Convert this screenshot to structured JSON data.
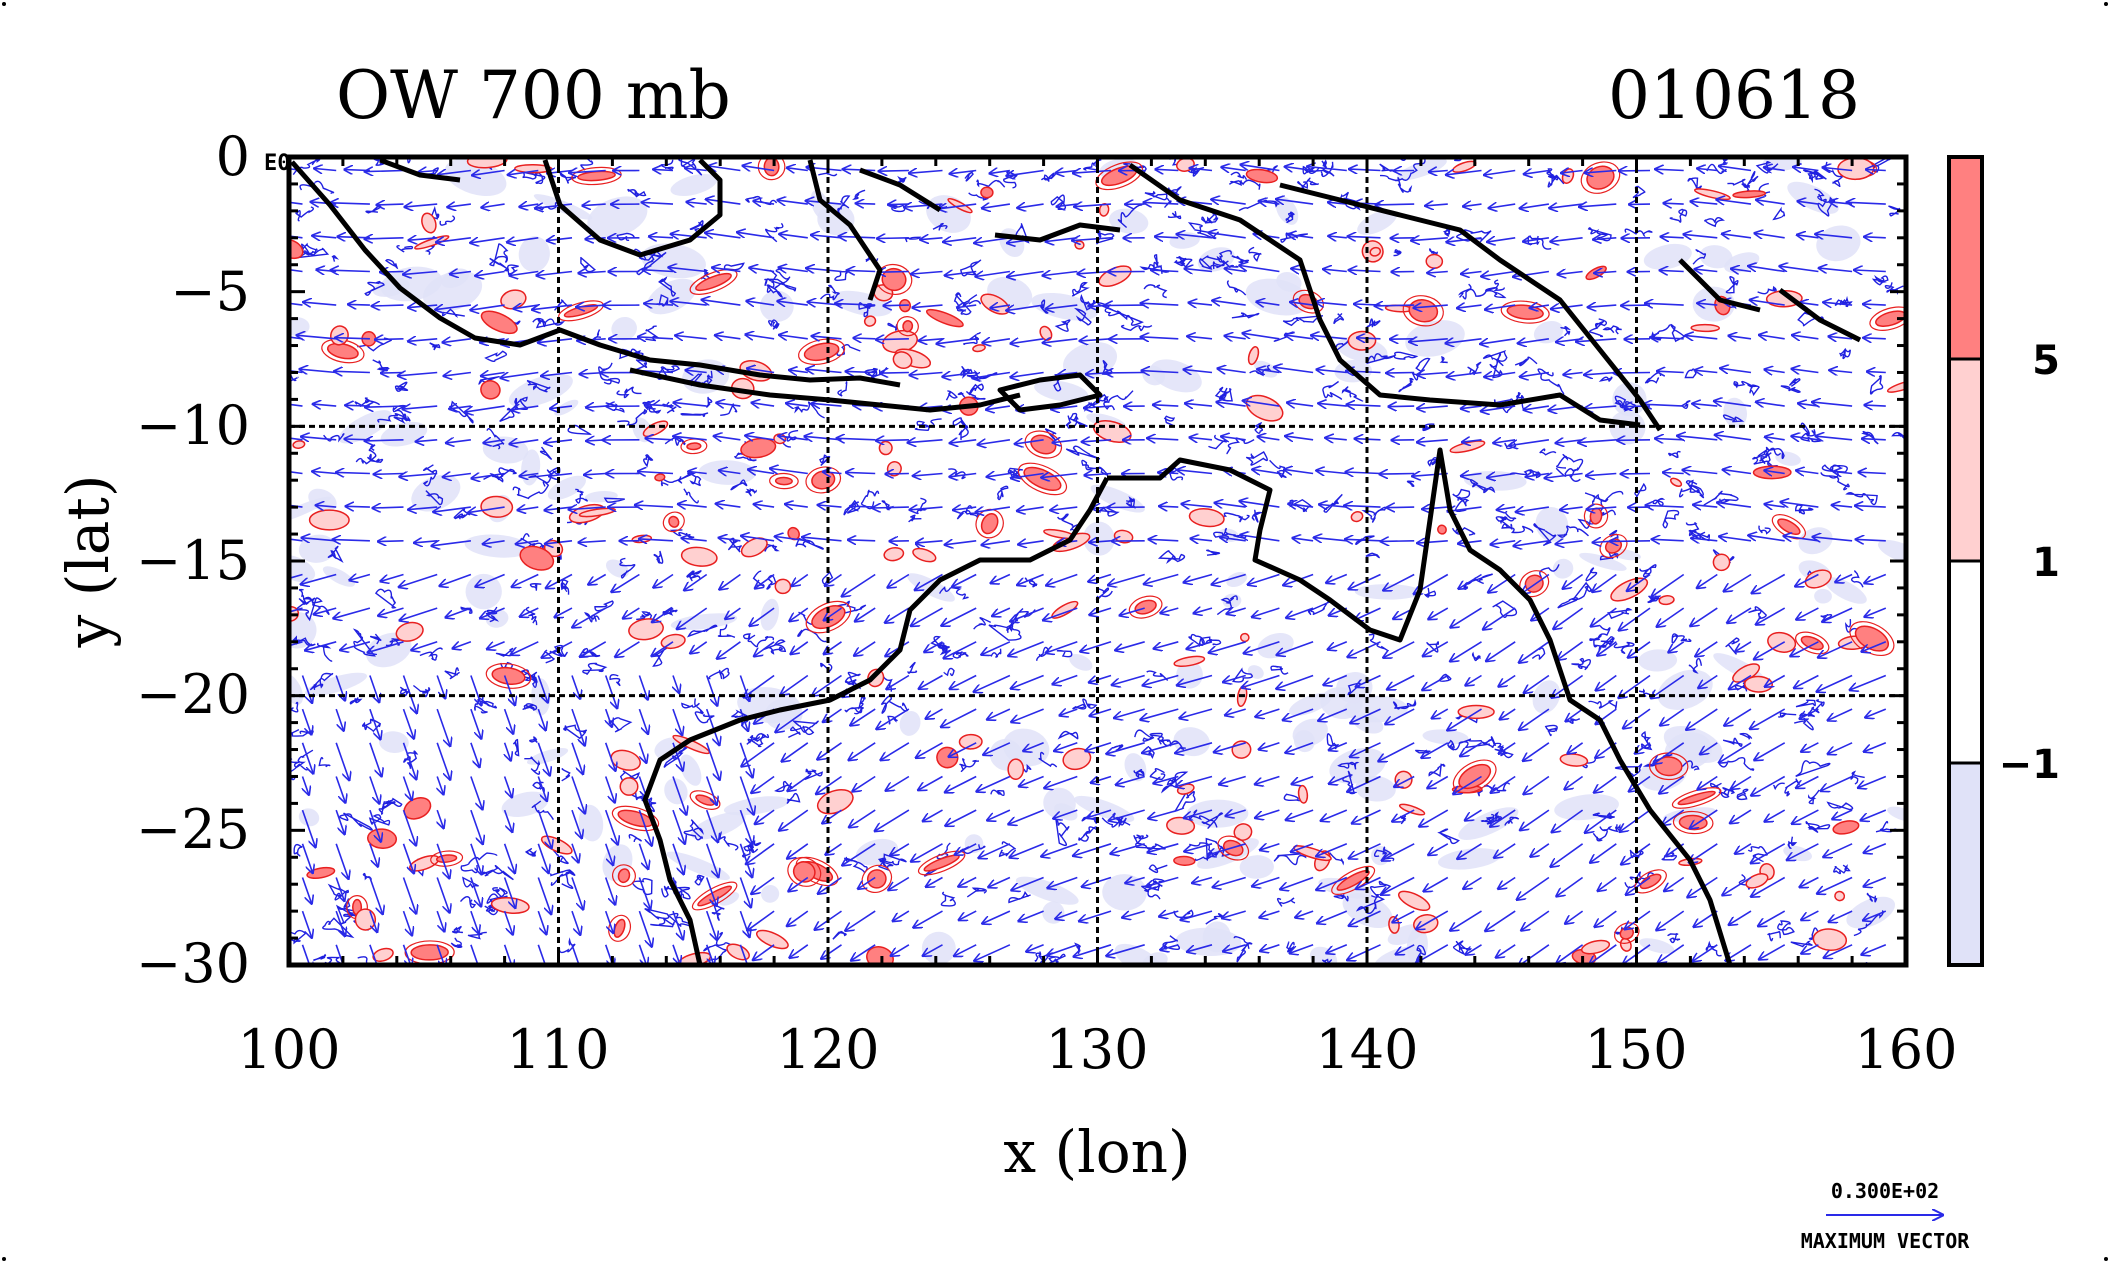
{
  "title_left": "OW 700 mb",
  "title_right": "010618",
  "map_label": "E0",
  "xlabel": "x (lon)",
  "ylabel": "y (lat)",
  "x_ticks": [
    "100",
    "110",
    "120",
    "130",
    "140",
    "150",
    "160"
  ],
  "y_ticks": [
    "0",
    "−5",
    "−10",
    "−15",
    "−20",
    "−25",
    "−30"
  ],
  "colorbar": {
    "labels": [
      "5",
      "1",
      "−1"
    ],
    "colors": [
      "#ff8080",
      "#ffd0d0",
      "#ffffff",
      "#e0e2f8"
    ]
  },
  "vector_legend": {
    "value": "0.300E+02",
    "caption": "MAXIMUM VECTOR"
  },
  "colors": {
    "positive_contour": "#e82020",
    "negative_contour": "#2020e0",
    "vector": "#2a2ae8",
    "coast": "#000000"
  },
  "chart_data": {
    "type": "map",
    "variable": "Okubo-Weiss parameter at 700 mb with wind vectors",
    "date": "010618",
    "xlim": [
      100,
      160
    ],
    "ylim": [
      -30,
      0
    ],
    "xlabel": "x (lon)",
    "ylabel": "y (lat)",
    "grid_lon": [
      110,
      120,
      130,
      140,
      150
    ],
    "grid_lat": [
      -10,
      -20
    ],
    "contour_levels": [
      -1,
      1,
      5
    ],
    "max_vector": 30.0
  }
}
